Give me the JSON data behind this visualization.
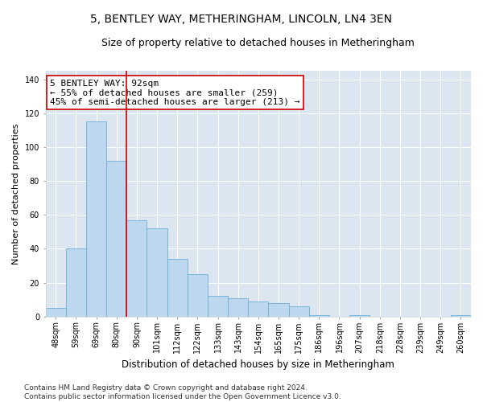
{
  "title": "5, BENTLEY WAY, METHERINGHAM, LINCOLN, LN4 3EN",
  "subtitle": "Size of property relative to detached houses in Metheringham",
  "xlabel": "Distribution of detached houses by size in Metheringham",
  "ylabel": "Number of detached properties",
  "bar_labels": [
    "48sqm",
    "59sqm",
    "69sqm",
    "80sqm",
    "90sqm",
    "101sqm",
    "112sqm",
    "122sqm",
    "133sqm",
    "143sqm",
    "154sqm",
    "165sqm",
    "175sqm",
    "186sqm",
    "196sqm",
    "207sqm",
    "218sqm",
    "228sqm",
    "239sqm",
    "249sqm",
    "260sqm"
  ],
  "bar_heights": [
    5,
    40,
    115,
    92,
    57,
    52,
    34,
    25,
    12,
    11,
    9,
    8,
    6,
    1,
    0,
    1,
    0,
    0,
    0,
    0,
    1
  ],
  "ylim": [
    0,
    145
  ],
  "redline_x": 3.5,
  "bar_color": "#bdd7ee",
  "bar_edge_color": "#6baed6",
  "bg_color": "#dce6f1",
  "marker_color": "#cc0000",
  "annotation_text": "5 BENTLEY WAY: 92sqm\n← 55% of detached houses are smaller (259)\n45% of semi-detached houses are larger (213) →",
  "annotation_box_color": "#ffffff",
  "annotation_box_edge": "#cc0000",
  "footer_text": "Contains HM Land Registry data © Crown copyright and database right 2024.\nContains public sector information licensed under the Open Government Licence v3.0.",
  "title_fontsize": 10,
  "subtitle_fontsize": 9,
  "xlabel_fontsize": 8.5,
  "ylabel_fontsize": 8,
  "tick_fontsize": 7,
  "annotation_fontsize": 8,
  "footer_fontsize": 6.5
}
